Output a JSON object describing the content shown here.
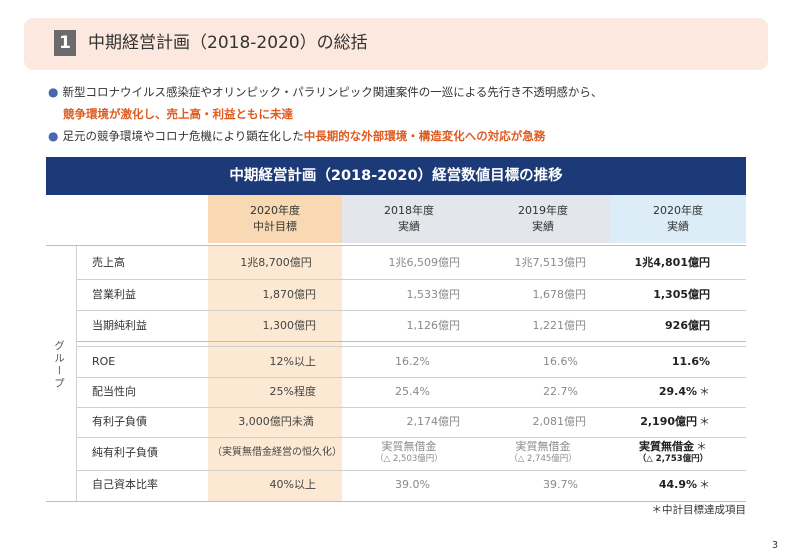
{
  "title": {
    "number": "1",
    "text": "中期経営計画（2018-2020）の総括"
  },
  "bullets": {
    "b1_text": "新型コロナウイルス感染症やオリンピック・パラリンピック関連案件の一巡による先行き不透明感から、",
    "b1_emphasis": "競争環境が激化し、売上高・利益ともに未達",
    "b2_text": "足元の競争環境やコロナ危機により顕在化した",
    "b2_emphasis": "中長期的な外部環境・構造変化への対応が急務"
  },
  "table": {
    "title": "中期経営計画（2018-2020）経営数値目標の推移",
    "group_label": "グループ",
    "headers": [
      {
        "line1": "2020年度",
        "line2": "中計目標"
      },
      {
        "line1": "2018年度",
        "line2": "実績"
      },
      {
        "line1": "2019年度",
        "line2": "実績"
      },
      {
        "line1": "2020年度",
        "line2": "実績"
      }
    ],
    "rows": [
      {
        "label": "売上高",
        "target": "1兆8,700億円",
        "y2018": "1兆6,509億円",
        "y2019": "1兆7,513億円",
        "y2020": "1兆4,801億円",
        "star": ""
      },
      {
        "label": "営業利益",
        "target": "1,870億円",
        "y2018": "1,533億円",
        "y2019": "1,678億円",
        "y2020": "1,305億円",
        "star": ""
      },
      {
        "label": "当期純利益",
        "target": "1,300億円",
        "y2018": "1,126億円",
        "y2019": "1,221億円",
        "y2020": "926億円",
        "star": ""
      },
      {
        "label": "ROE",
        "target": "12%以上",
        "y2018": "16.2%",
        "y2019": "16.6%",
        "y2020": "11.6%",
        "star": ""
      },
      {
        "label": "配当性向",
        "target": "25%程度",
        "y2018": "25.4%",
        "y2019": "22.7%",
        "y2020": "29.4%",
        "star": "＊"
      },
      {
        "label": "有利子負債",
        "target": "3,000億円未満",
        "y2018": "2,174億円",
        "y2019": "2,081億円",
        "y2020": "2,190億円",
        "star": "＊"
      },
      {
        "label": "純有利子負債",
        "target": "（実質無借金経営の恒久化）",
        "y2018": "実質無借金",
        "y2018_sub": "（△ 2,503億円）",
        "y2019": "実質無借金",
        "y2019_sub": "（△ 2,745億円）",
        "y2020": "実質無借金",
        "y2020_sub": "（△ 2,753億円）",
        "star": "＊"
      },
      {
        "label": "自己資本比率",
        "target": "40%以上",
        "y2018": "39.0%",
        "y2019": "39.7%",
        "y2020": "44.9%",
        "star": "＊"
      }
    ]
  },
  "footnote": "＊中計目標達成項目",
  "page_number": "3"
}
